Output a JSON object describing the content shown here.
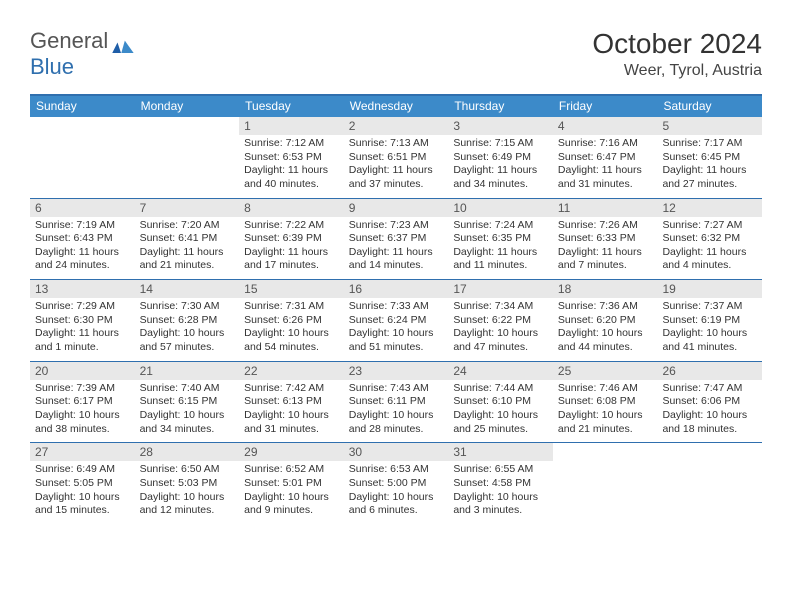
{
  "logo": {
    "text1": "General",
    "text2": "Blue"
  },
  "title": {
    "month": "October 2024",
    "location": "Weer, Tyrol, Austria"
  },
  "colors": {
    "accent": "#2f6fae",
    "header_bg": "#3c8ac9",
    "daynum_bg": "#e8e8e8",
    "text": "#333333"
  },
  "day_headers": [
    "Sunday",
    "Monday",
    "Tuesday",
    "Wednesday",
    "Thursday",
    "Friday",
    "Saturday"
  ],
  "weeks": [
    [
      null,
      null,
      {
        "n": "1",
        "sr": "Sunrise: 7:12 AM",
        "ss": "Sunset: 6:53 PM",
        "dl": "Daylight: 11 hours and 40 minutes."
      },
      {
        "n": "2",
        "sr": "Sunrise: 7:13 AM",
        "ss": "Sunset: 6:51 PM",
        "dl": "Daylight: 11 hours and 37 minutes."
      },
      {
        "n": "3",
        "sr": "Sunrise: 7:15 AM",
        "ss": "Sunset: 6:49 PM",
        "dl": "Daylight: 11 hours and 34 minutes."
      },
      {
        "n": "4",
        "sr": "Sunrise: 7:16 AM",
        "ss": "Sunset: 6:47 PM",
        "dl": "Daylight: 11 hours and 31 minutes."
      },
      {
        "n": "5",
        "sr": "Sunrise: 7:17 AM",
        "ss": "Sunset: 6:45 PM",
        "dl": "Daylight: 11 hours and 27 minutes."
      }
    ],
    [
      {
        "n": "6",
        "sr": "Sunrise: 7:19 AM",
        "ss": "Sunset: 6:43 PM",
        "dl": "Daylight: 11 hours and 24 minutes."
      },
      {
        "n": "7",
        "sr": "Sunrise: 7:20 AM",
        "ss": "Sunset: 6:41 PM",
        "dl": "Daylight: 11 hours and 21 minutes."
      },
      {
        "n": "8",
        "sr": "Sunrise: 7:22 AM",
        "ss": "Sunset: 6:39 PM",
        "dl": "Daylight: 11 hours and 17 minutes."
      },
      {
        "n": "9",
        "sr": "Sunrise: 7:23 AM",
        "ss": "Sunset: 6:37 PM",
        "dl": "Daylight: 11 hours and 14 minutes."
      },
      {
        "n": "10",
        "sr": "Sunrise: 7:24 AM",
        "ss": "Sunset: 6:35 PM",
        "dl": "Daylight: 11 hours and 11 minutes."
      },
      {
        "n": "11",
        "sr": "Sunrise: 7:26 AM",
        "ss": "Sunset: 6:33 PM",
        "dl": "Daylight: 11 hours and 7 minutes."
      },
      {
        "n": "12",
        "sr": "Sunrise: 7:27 AM",
        "ss": "Sunset: 6:32 PM",
        "dl": "Daylight: 11 hours and 4 minutes."
      }
    ],
    [
      {
        "n": "13",
        "sr": "Sunrise: 7:29 AM",
        "ss": "Sunset: 6:30 PM",
        "dl": "Daylight: 11 hours and 1 minute."
      },
      {
        "n": "14",
        "sr": "Sunrise: 7:30 AM",
        "ss": "Sunset: 6:28 PM",
        "dl": "Daylight: 10 hours and 57 minutes."
      },
      {
        "n": "15",
        "sr": "Sunrise: 7:31 AM",
        "ss": "Sunset: 6:26 PM",
        "dl": "Daylight: 10 hours and 54 minutes."
      },
      {
        "n": "16",
        "sr": "Sunrise: 7:33 AM",
        "ss": "Sunset: 6:24 PM",
        "dl": "Daylight: 10 hours and 51 minutes."
      },
      {
        "n": "17",
        "sr": "Sunrise: 7:34 AM",
        "ss": "Sunset: 6:22 PM",
        "dl": "Daylight: 10 hours and 47 minutes."
      },
      {
        "n": "18",
        "sr": "Sunrise: 7:36 AM",
        "ss": "Sunset: 6:20 PM",
        "dl": "Daylight: 10 hours and 44 minutes."
      },
      {
        "n": "19",
        "sr": "Sunrise: 7:37 AM",
        "ss": "Sunset: 6:19 PM",
        "dl": "Daylight: 10 hours and 41 minutes."
      }
    ],
    [
      {
        "n": "20",
        "sr": "Sunrise: 7:39 AM",
        "ss": "Sunset: 6:17 PM",
        "dl": "Daylight: 10 hours and 38 minutes."
      },
      {
        "n": "21",
        "sr": "Sunrise: 7:40 AM",
        "ss": "Sunset: 6:15 PM",
        "dl": "Daylight: 10 hours and 34 minutes."
      },
      {
        "n": "22",
        "sr": "Sunrise: 7:42 AM",
        "ss": "Sunset: 6:13 PM",
        "dl": "Daylight: 10 hours and 31 minutes."
      },
      {
        "n": "23",
        "sr": "Sunrise: 7:43 AM",
        "ss": "Sunset: 6:11 PM",
        "dl": "Daylight: 10 hours and 28 minutes."
      },
      {
        "n": "24",
        "sr": "Sunrise: 7:44 AM",
        "ss": "Sunset: 6:10 PM",
        "dl": "Daylight: 10 hours and 25 minutes."
      },
      {
        "n": "25",
        "sr": "Sunrise: 7:46 AM",
        "ss": "Sunset: 6:08 PM",
        "dl": "Daylight: 10 hours and 21 minutes."
      },
      {
        "n": "26",
        "sr": "Sunrise: 7:47 AM",
        "ss": "Sunset: 6:06 PM",
        "dl": "Daylight: 10 hours and 18 minutes."
      }
    ],
    [
      {
        "n": "27",
        "sr": "Sunrise: 6:49 AM",
        "ss": "Sunset: 5:05 PM",
        "dl": "Daylight: 10 hours and 15 minutes."
      },
      {
        "n": "28",
        "sr": "Sunrise: 6:50 AM",
        "ss": "Sunset: 5:03 PM",
        "dl": "Daylight: 10 hours and 12 minutes."
      },
      {
        "n": "29",
        "sr": "Sunrise: 6:52 AM",
        "ss": "Sunset: 5:01 PM",
        "dl": "Daylight: 10 hours and 9 minutes."
      },
      {
        "n": "30",
        "sr": "Sunrise: 6:53 AM",
        "ss": "Sunset: 5:00 PM",
        "dl": "Daylight: 10 hours and 6 minutes."
      },
      {
        "n": "31",
        "sr": "Sunrise: 6:55 AM",
        "ss": "Sunset: 4:58 PM",
        "dl": "Daylight: 10 hours and 3 minutes."
      },
      null,
      null
    ]
  ]
}
